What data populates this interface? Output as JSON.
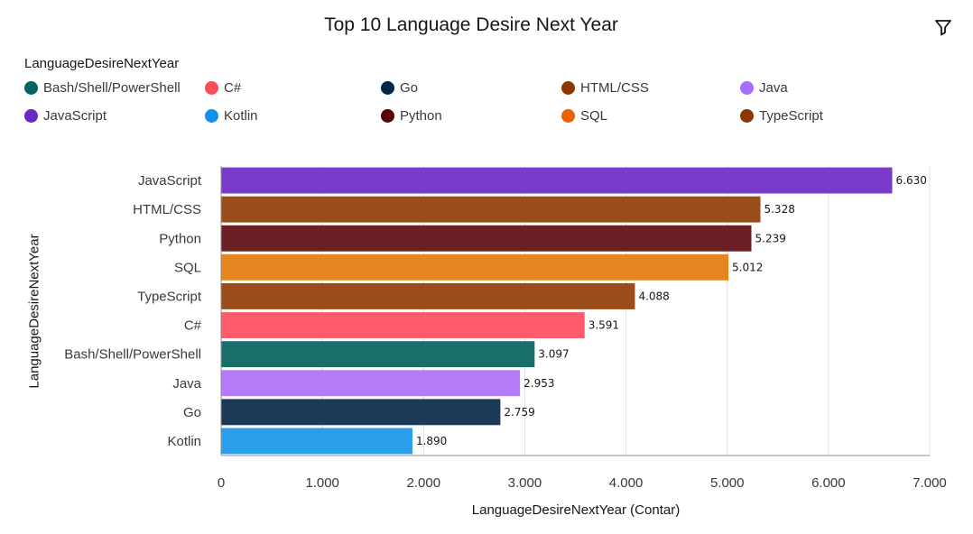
{
  "chart_data": {
    "type": "bar",
    "orientation": "horizontal",
    "title": "Top 10 Language Desire Next Year",
    "legend_title": "LanguageDesireNextYear",
    "legend_position": "top",
    "xlabel": "LanguageDesireNextYear (Contar)",
    "ylabel": "LanguageDesireNextYear",
    "xlim": [
      0,
      7000
    ],
    "x_ticks": [
      0,
      1000,
      2000,
      3000,
      4000,
      5000,
      6000,
      7000
    ],
    "x_tick_labels": [
      "0",
      "1.000",
      "2.000",
      "3.000",
      "4.000",
      "5.000",
      "6.000",
      "7.000"
    ],
    "grid": true,
    "categories": [
      "JavaScript",
      "HTML/CSS",
      "Python",
      "SQL",
      "TypeScript",
      "C#",
      "Bash/Shell/PowerShell",
      "Java",
      "Go",
      "Kotlin"
    ],
    "values": [
      6630,
      5328,
      5239,
      5012,
      4088,
      3591,
      3097,
      2953,
      2759,
      1890
    ],
    "value_labels": [
      "6.630",
      "5.328",
      "5.239",
      "5.012",
      "4.088",
      "3.591",
      "3.097",
      "2.953",
      "2.759",
      "1.890"
    ],
    "bar_colors": [
      "#7a3bcc",
      "#9a4c1a",
      "#6a1f24",
      "#e5851f",
      "#9a4c1a",
      "#fe5c6a",
      "#1a6f6d",
      "#b47cf9",
      "#1c3957",
      "#2b9eea"
    ],
    "legend": [
      {
        "name": "Bash/Shell/PowerShell",
        "color": "#036464"
      },
      {
        "name": "C#",
        "color": "#fa4d56"
      },
      {
        "name": "Go",
        "color": "#012749"
      },
      {
        "name": "HTML/CSS",
        "color": "#8a3800"
      },
      {
        "name": "Java",
        "color": "#a56eff"
      },
      {
        "name": "JavaScript",
        "color": "#6929c4"
      },
      {
        "name": "Kotlin",
        "color": "#1192e8"
      },
      {
        "name": "Python",
        "color": "#570408"
      },
      {
        "name": "SQL",
        "color": "#eb6200"
      },
      {
        "name": "TypeScript",
        "color": "#8a3800"
      }
    ]
  },
  "toolbar": {
    "filter_icon": "filter-icon"
  }
}
